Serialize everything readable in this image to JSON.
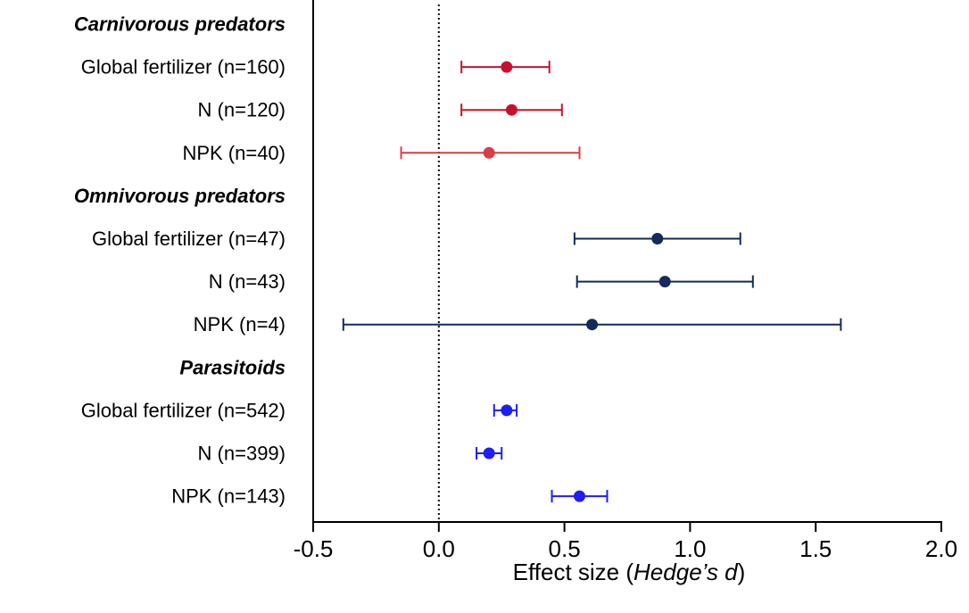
{
  "chart_data": {
    "type": "forest",
    "xlim": [
      -0.5,
      2.0
    ],
    "x_ticks": [
      "-0.5",
      "0.0",
      "0.5",
      "1.0",
      "1.5",
      "2.0"
    ],
    "x_tick_values": [
      -0.5,
      0.0,
      0.5,
      1.0,
      1.5,
      2.0
    ],
    "xlabel_prefix": "Effect size (",
    "xlabel_italic": "Hedge’s d",
    "xlabel_suffix": ")",
    "reference_line": 0.0,
    "groups": [
      {
        "name": "Carnivorous predators",
        "color": "#d0202e",
        "rows": [
          {
            "label": "Global fertilizer (n=160)",
            "mean": 0.27,
            "lower": 0.09,
            "upper": 0.44,
            "color": "#c8102e"
          },
          {
            "label": "N (n=120)",
            "mean": 0.29,
            "lower": 0.09,
            "upper": 0.49,
            "color": "#c8102e"
          },
          {
            "label": "NPK (n=40)",
            "mean": 0.2,
            "lower": -0.15,
            "upper": 0.56,
            "color": "#dc3c46"
          }
        ]
      },
      {
        "name": "Omnivorous predators",
        "color": "#1c2f66",
        "rows": [
          {
            "label": "Global fertilizer (n=47)",
            "mean": 0.87,
            "lower": 0.54,
            "upper": 1.2,
            "color": "#132a5c"
          },
          {
            "label": "N (n=43)",
            "mean": 0.9,
            "lower": 0.55,
            "upper": 1.25,
            "color": "#132a5c"
          },
          {
            "label": "NPK (n=4)",
            "mean": 0.61,
            "lower": -0.38,
            "upper": 1.6,
            "color": "#132a5c"
          }
        ]
      },
      {
        "name": "Parasitoids",
        "color": "#2424f0",
        "rows": [
          {
            "label": "Global fertilizer (n=542)",
            "mean": 0.27,
            "lower": 0.22,
            "upper": 0.31,
            "color": "#1e1ef5"
          },
          {
            "label": "N (n=399)",
            "mean": 0.2,
            "lower": 0.15,
            "upper": 0.25,
            "color": "#1e1ef5"
          },
          {
            "label": "NPK (n=143)",
            "mean": 0.56,
            "lower": 0.45,
            "upper": 0.67,
            "color": "#1e1ef5"
          }
        ]
      }
    ]
  }
}
